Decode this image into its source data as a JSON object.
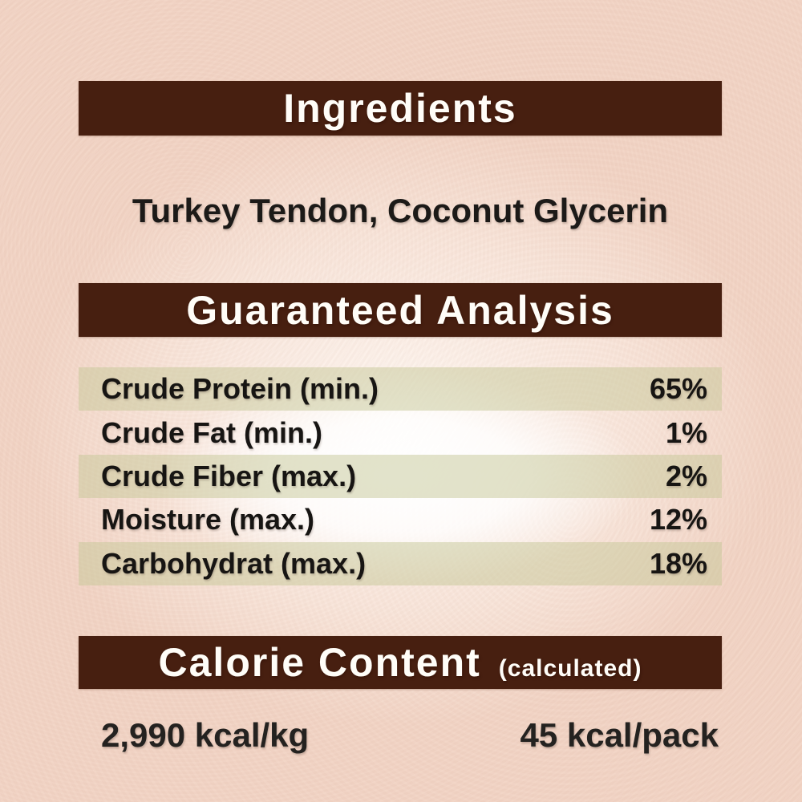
{
  "theme": {
    "background_color": "#f2d4c5",
    "section_bar_color": "#471f10",
    "header_text_color": "#fffdf8",
    "row_highlight_color": "#e6e3cc",
    "body_text_color": "#1c1a18"
  },
  "ingredients": {
    "header": "Ingredients",
    "list": "Turkey Tendon, Coconut Glycerin"
  },
  "guaranteed_analysis": {
    "header": "Guaranteed Analysis",
    "rows": [
      {
        "label": "Crude Protein (min.)",
        "value": "65%"
      },
      {
        "label": "Crude Fat (min.)",
        "value": "1%"
      },
      {
        "label": "Crude Fiber (max.)",
        "value": "2%"
      },
      {
        "label": "Moisture (max.)",
        "value": "12%"
      },
      {
        "label": "Carbohydrat (max.)",
        "value": "18%"
      }
    ]
  },
  "calorie_content": {
    "header": "Calorie Content",
    "qualifier": "(calculated)",
    "per_kg": "2,990 kcal/kg",
    "per_pack": "45 kcal/pack"
  }
}
